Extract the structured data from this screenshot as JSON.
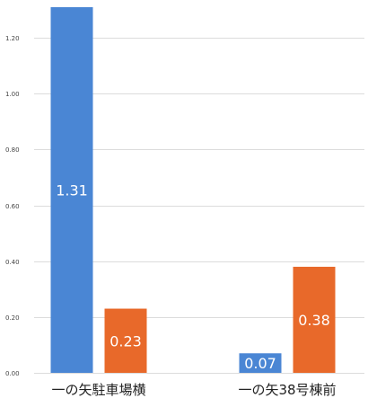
{
  "chart_data": {
    "type": "bar",
    "categories": [
      "一の矢駐車場横",
      "一の矢38号棟前"
    ],
    "series": [
      {
        "values": [
          1.31,
          0.07
        ],
        "labels": [
          "1.31",
          "0.07"
        ],
        "color": "#4a86d4"
      },
      {
        "values": [
          0.23,
          0.38
        ],
        "labels": [
          "0.23",
          "0.38"
        ],
        "color": "#e8692a"
      }
    ],
    "ylim": [
      0,
      1.31
    ],
    "yticks": [
      0,
      0.2,
      0.4,
      0.6,
      0.8,
      1.0,
      1.2
    ],
    "ytick_labels": [
      "0.00",
      "0.20",
      "0.40",
      "0.60",
      "0.80",
      "1.00",
      "1.20"
    ],
    "grid": true,
    "title": "",
    "xlabel": "",
    "ylabel": ""
  }
}
